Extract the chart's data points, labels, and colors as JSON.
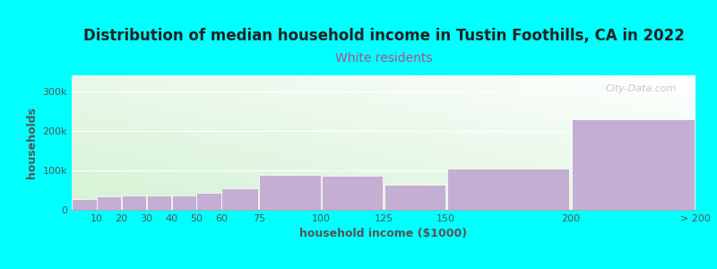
{
  "title": "Distribution of median household income in Tustin Foothills, CA in 2022",
  "subtitle": "White residents",
  "xlabel": "household income ($1000)",
  "ylabel": "households",
  "background_color": "#00FFFF",
  "bar_color": "#c4aed4",
  "bar_edge_color": "#b09abe",
  "title_fontsize": 12,
  "subtitle_fontsize": 10,
  "subtitle_color": "#b05090",
  "title_color": "#222222",
  "ylabel_color": "#555555",
  "xlabel_color": "#555555",
  "tick_color": "#555555",
  "categories": [
    "10",
    "20",
    "30",
    "40",
    "50",
    "60",
    "75",
    "100",
    "125",
    "150",
    "200",
    "> 200"
  ],
  "widths": [
    10,
    10,
    10,
    10,
    10,
    10,
    15,
    25,
    25,
    25,
    50,
    50
  ],
  "left_edges": [
    0,
    10,
    20,
    30,
    40,
    50,
    60,
    75,
    100,
    125,
    150,
    200
  ],
  "values": [
    27000,
    33000,
    36000,
    36000,
    36000,
    42000,
    55000,
    88000,
    87000,
    63000,
    105000,
    228000
  ],
  "ylim": [
    0,
    340000
  ],
  "yticks": [
    0,
    100000,
    200000,
    300000
  ],
  "ytick_labels": [
    "0",
    "100k",
    "200k",
    "300k"
  ],
  "watermark": "City-Data.com",
  "grad_bottom_left": "#d4efd4",
  "grad_top_right": "#f8f8f5"
}
